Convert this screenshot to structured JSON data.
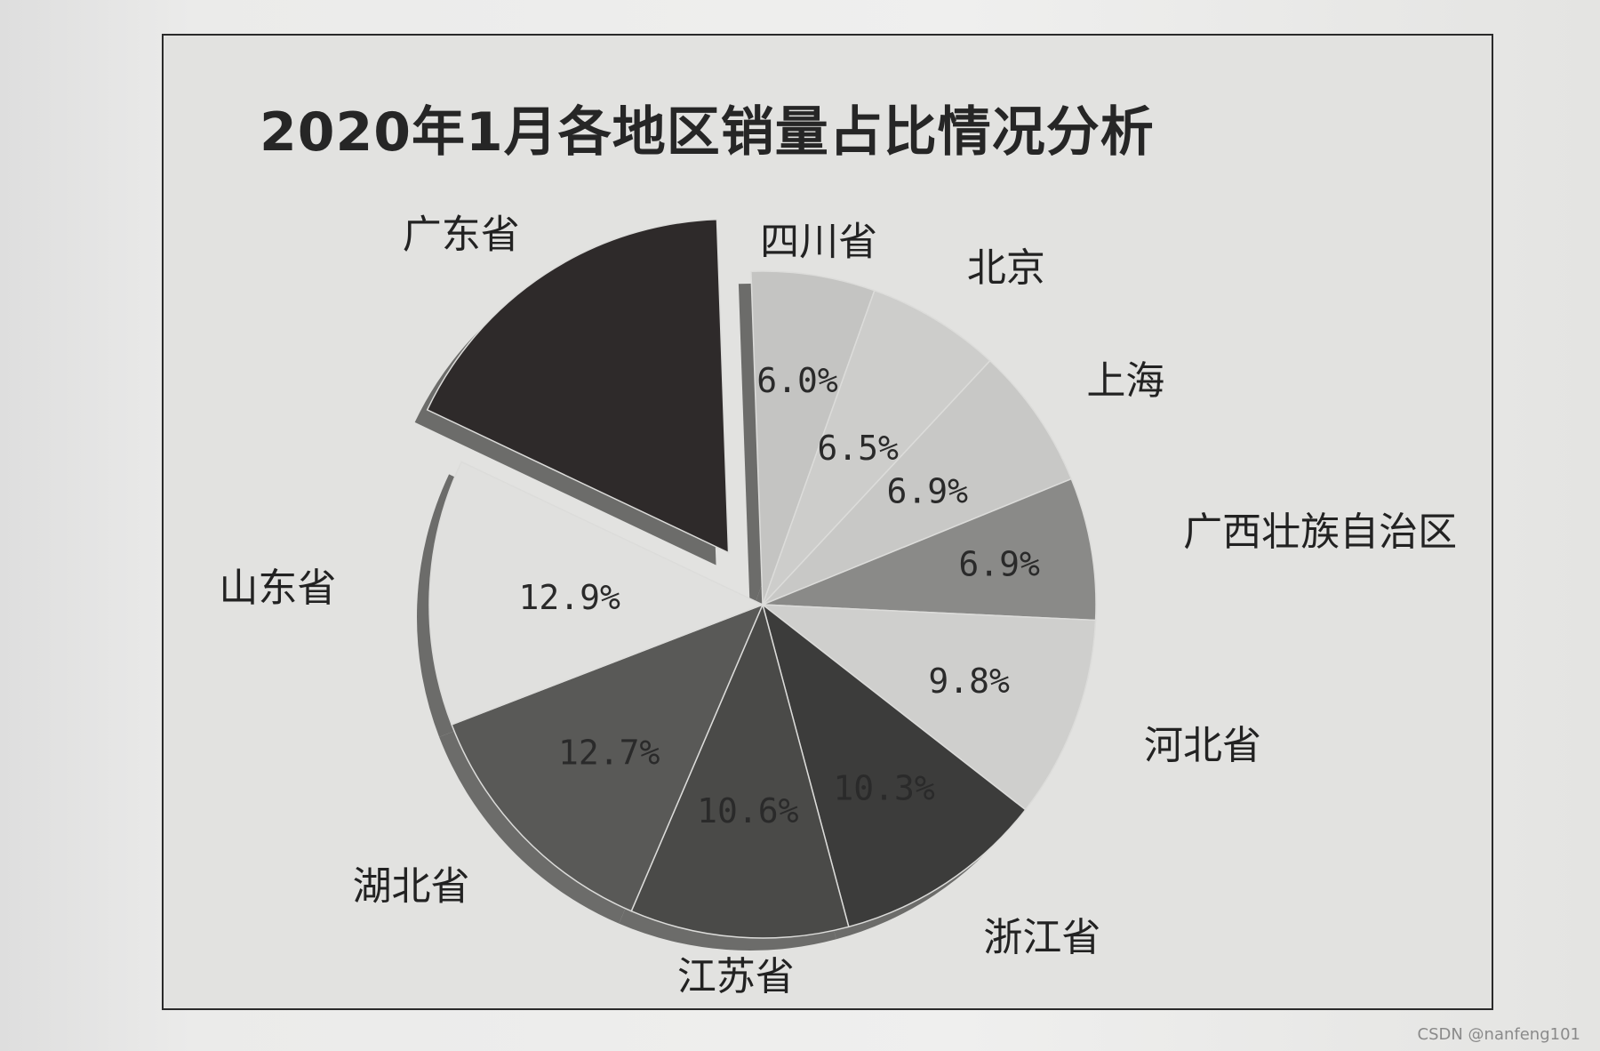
{
  "chart_data": {
    "type": "pie",
    "title": "2020年1月各地区销量占比情况分析",
    "slices": [
      {
        "label": "四川省",
        "value": 6.0,
        "pct_label": "6.0%",
        "color": "#c4c4c2",
        "explode": 0
      },
      {
        "label": "北京",
        "value": 6.5,
        "pct_label": "6.5%",
        "color": "#cdcdcb",
        "explode": 0
      },
      {
        "label": "上海",
        "value": 6.9,
        "pct_label": "6.9%",
        "color": "#c8c8c6",
        "explode": 0
      },
      {
        "label": "广西壮族自治区",
        "value": 6.9,
        "pct_label": "6.9%",
        "color": "#8a8a88",
        "explode": 0
      },
      {
        "label": "河北省",
        "value": 9.8,
        "pct_label": "9.8%",
        "color": "#cfcfcd",
        "explode": 0
      },
      {
        "label": "浙江省",
        "value": 10.3,
        "pct_label": "10.3%",
        "color": "#3c3c3b",
        "explode": 0
      },
      {
        "label": "江苏省",
        "value": 10.6,
        "pct_label": "10.6%",
        "color": "#4a4a48",
        "explode": 0
      },
      {
        "label": "湖北省",
        "value": 12.7,
        "pct_label": "12.7%",
        "color": "#595957",
        "explode": 0
      },
      {
        "label": "山东省",
        "value": 12.9,
        "pct_label": "12.9%",
        "color": "#e0e0de",
        "explode": 0
      },
      {
        "label": "广东省",
        "value": 17.4,
        "pct_label": "",
        "color": "#2e2a2a",
        "explode": 1
      }
    ]
  },
  "watermark": "CSDN @nanfeng101"
}
